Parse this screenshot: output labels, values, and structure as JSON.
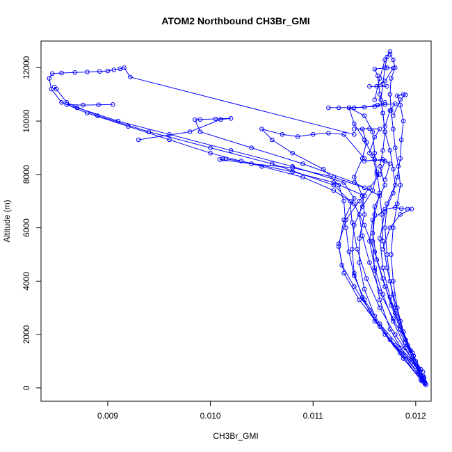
{
  "chart_data": {
    "type": "scatter",
    "title": "ATOM2 Northbound CH3Br_GMI",
    "xlabel": "CH3Br_GMI",
    "ylabel": "Altitude (m)",
    "xlim": [
      0.00835,
      0.01215
    ],
    "ylim": [
      -500,
      13000
    ],
    "xticks": [
      0.009,
      0.01,
      0.011,
      0.012
    ],
    "xtick_labels": [
      "0.009",
      "0.010",
      "0.011",
      "0.012"
    ],
    "yticks": [
      0,
      2000,
      4000,
      6000,
      8000,
      10000,
      12000
    ],
    "ytick_labels": [
      "0",
      "2000",
      "4000",
      "6000",
      "8000",
      "10000",
      "12000"
    ],
    "grid": false,
    "legend": "none",
    "color": "#0000ff",
    "marker": "open-circle",
    "line": "connected",
    "series": [
      {
        "values": [
          [
            0.01209,
            150
          ],
          [
            0.01205,
            700
          ],
          [
            0.01195,
            1400
          ],
          [
            0.01185,
            2200
          ],
          [
            0.01176,
            3100
          ],
          [
            0.01168,
            4100
          ],
          [
            0.0116,
            5100
          ],
          [
            0.0115,
            6100
          ],
          [
            0.0114,
            6900
          ],
          [
            0.0112,
            7400
          ],
          [
            0.0109,
            7900
          ],
          [
            0.0105,
            8300
          ],
          [
            0.01,
            8800
          ],
          [
            0.0096,
            9300
          ],
          [
            0.0092,
            9800
          ],
          [
            0.0088,
            10300
          ],
          [
            0.00855,
            10700
          ],
          [
            0.00845,
            11200
          ],
          [
            0.00843,
            11600
          ],
          [
            0.00846,
            11780
          ],
          [
            0.00855,
            11800
          ],
          [
            0.00868,
            11820
          ],
          [
            0.0088,
            11840
          ],
          [
            0.00892,
            11860
          ],
          [
            0.009,
            11880
          ],
          [
            0.00906,
            11920
          ],
          [
            0.00912,
            11960
          ],
          [
            0.00916,
            12000
          ],
          [
            0.00922,
            11650
          ],
          [
            0.0114,
            9500
          ]
        ]
      },
      {
        "values": [
          [
            0.01208,
            250
          ],
          [
            0.012,
            900
          ],
          [
            0.0119,
            1700
          ],
          [
            0.01178,
            2600
          ],
          [
            0.01165,
            3600
          ],
          [
            0.01155,
            4700
          ],
          [
            0.01148,
            5700
          ],
          [
            0.01145,
            6500
          ],
          [
            0.0115,
            7200
          ],
          [
            0.0112,
            7700
          ],
          [
            0.0108,
            8100
          ],
          [
            0.0103,
            8500
          ],
          [
            0.01015,
            8580
          ],
          [
            0.01012,
            8580
          ],
          [
            0.01009,
            8560
          ],
          [
            0.0104,
            8400
          ],
          [
            0.0108,
            8250
          ],
          [
            0.0112,
            7900
          ],
          [
            0.0115,
            7500
          ]
        ]
      },
      {
        "values": [
          [
            0.01207,
            350
          ],
          [
            0.01196,
            1100
          ],
          [
            0.0118,
            2000
          ],
          [
            0.01165,
            3000
          ],
          [
            0.01152,
            4100
          ],
          [
            0.01143,
            5200
          ],
          [
            0.01138,
            6200
          ],
          [
            0.01136,
            7000
          ],
          [
            0.0112,
            7600
          ],
          [
            0.0106,
            8400
          ],
          [
            0.01,
            9000
          ],
          [
            0.0094,
            9600
          ],
          [
            0.0089,
            10200
          ],
          [
            0.0086,
            10700
          ],
          [
            0.0085,
            11200
          ],
          [
            0.00848,
            11280
          ]
        ]
      },
      {
        "values": [
          [
            0.01205,
            300
          ],
          [
            0.01185,
            1300
          ],
          [
            0.01165,
            2300
          ],
          [
            0.01145,
            3300
          ],
          [
            0.0113,
            4300
          ],
          [
            0.01125,
            5300
          ],
          [
            0.0113,
            6300
          ],
          [
            0.0114,
            7100
          ],
          [
            0.0113,
            7700
          ],
          [
            0.0108,
            8300
          ],
          [
            0.0102,
            8900
          ],
          [
            0.0096,
            9500
          ],
          [
            0.0091,
            10000
          ],
          [
            0.0087,
            10500
          ],
          [
            0.0086,
            10620
          ],
          [
            0.00876,
            10600
          ],
          [
            0.00891,
            10610
          ],
          [
            0.00905,
            10620
          ]
        ]
      },
      {
        "values": [
          [
            0.01209,
            200
          ],
          [
            0.012,
            800
          ],
          [
            0.01192,
            1600
          ],
          [
            0.01185,
            2500
          ],
          [
            0.01178,
            3500
          ],
          [
            0.01172,
            4500
          ],
          [
            0.01168,
            5500
          ],
          [
            0.01167,
            6500
          ],
          [
            0.01165,
            7200
          ],
          [
            0.0114,
            7700
          ],
          [
            0.0109,
            8400
          ],
          [
            0.0104,
            9000
          ],
          [
            0.0099,
            9600
          ],
          [
            0.00985,
            10050
          ],
          [
            0.0099,
            10060
          ],
          [
            0.01005,
            10080
          ],
          [
            0.0102,
            10100
          ],
          [
            0.0101,
            10060
          ],
          [
            0.0098,
            9600
          ],
          [
            0.0093,
            9300
          ]
        ]
      },
      {
        "values": [
          [
            0.01208,
            400
          ],
          [
            0.01198,
            1200
          ],
          [
            0.01188,
            2100
          ],
          [
            0.0118,
            3000
          ],
          [
            0.01175,
            4000
          ],
          [
            0.01172,
            5000
          ],
          [
            0.0117,
            6000
          ],
          [
            0.01172,
            6900
          ],
          [
            0.0118,
            7600
          ],
          [
            0.01178,
            8200
          ],
          [
            0.01175,
            8900
          ],
          [
            0.0117,
            9600
          ],
          [
            0.01168,
            10300
          ],
          [
            0.01166,
            10800
          ],
          [
            0.01168,
            11400
          ],
          [
            0.0117,
            12000
          ],
          [
            0.01172,
            12400
          ],
          [
            0.01175,
            12600
          ],
          [
            0.0117,
            12300
          ],
          [
            0.01165,
            11600
          ],
          [
            0.0116,
            10800
          ]
        ]
      },
      {
        "values": [
          [
            0.01206,
            300
          ],
          [
            0.0119,
            1200
          ],
          [
            0.01175,
            2200
          ],
          [
            0.01165,
            3300
          ],
          [
            0.0116,
            4400
          ],
          [
            0.01158,
            5500
          ],
          [
            0.0116,
            6500
          ],
          [
            0.01165,
            7300
          ],
          [
            0.01162,
            8100
          ],
          [
            0.0116,
            8800
          ],
          [
            0.01158,
            9600
          ],
          [
            0.0115,
            10200
          ],
          [
            0.01135,
            10500
          ],
          [
            0.01125,
            10500
          ],
          [
            0.01115,
            10500
          ],
          [
            0.0114,
            10500
          ],
          [
            0.0116,
            10550
          ],
          [
            0.0117,
            10620
          ],
          [
            0.0118,
            10650
          ],
          [
            0.01175,
            10400
          ],
          [
            0.0117,
            9800
          ]
        ]
      },
      {
        "values": [
          [
            0.01207,
            450
          ],
          [
            0.01197,
            1300
          ],
          [
            0.01185,
            2300
          ],
          [
            0.01175,
            3400
          ],
          [
            0.01168,
            4500
          ],
          [
            0.01165,
            5600
          ],
          [
            0.0117,
            6600
          ],
          [
            0.01178,
            7300
          ],
          [
            0.01182,
            7900
          ],
          [
            0.01185,
            8600
          ],
          [
            0.01186,
            9300
          ],
          [
            0.01188,
            10000
          ],
          [
            0.01185,
            10600
          ],
          [
            0.01182,
            10950
          ],
          [
            0.01188,
            11000
          ],
          [
            0.0119,
            10980
          ],
          [
            0.01185,
            10800
          ],
          [
            0.01178,
            10200
          ]
        ]
      },
      {
        "values": [
          [
            0.01204,
            500
          ],
          [
            0.0119,
            1500
          ],
          [
            0.01178,
            2500
          ],
          [
            0.01168,
            3500
          ],
          [
            0.0116,
            4500
          ],
          [
            0.01155,
            5500
          ],
          [
            0.01158,
            6300
          ],
          [
            0.0117,
            6700
          ],
          [
            0.0118,
            6760
          ],
          [
            0.01186,
            6720
          ],
          [
            0.01192,
            6700
          ],
          [
            0.01196,
            6700
          ],
          [
            0.01185,
            6500
          ],
          [
            0.01175,
            6000
          ],
          [
            0.01168,
            5200
          ]
        ]
      },
      {
        "values": [
          [
            0.01209,
            180
          ],
          [
            0.01195,
            900
          ],
          [
            0.01175,
            1800
          ],
          [
            0.0116,
            2700
          ],
          [
            0.0115,
            3700
          ],
          [
            0.01145,
            4700
          ],
          [
            0.01145,
            5600
          ],
          [
            0.0115,
            6500
          ],
          [
            0.01148,
            7200
          ],
          [
            0.0114,
            7900
          ],
          [
            0.01148,
            8600
          ],
          [
            0.01152,
            9200
          ],
          [
            0.01148,
            9700
          ],
          [
            0.0114,
            9700
          ],
          [
            0.01155,
            9720
          ],
          [
            0.01165,
            9700
          ],
          [
            0.0116,
            9400
          ],
          [
            0.01155,
            8800
          ]
        ]
      },
      {
        "values": [
          [
            0.01207,
            600
          ],
          [
            0.01185,
            1500
          ],
          [
            0.01165,
            2400
          ],
          [
            0.0115,
            3300
          ],
          [
            0.0114,
            4200
          ],
          [
            0.01135,
            5100
          ],
          [
            0.01132,
            6000
          ],
          [
            0.0113,
            7000
          ],
          [
            0.01125,
            7600
          ],
          [
            0.0111,
            8200
          ],
          [
            0.0108,
            8800
          ],
          [
            0.0106,
            9300
          ],
          [
            0.0105,
            9700
          ],
          [
            0.0107,
            9500
          ],
          [
            0.01085,
            9420
          ],
          [
            0.011,
            9500
          ],
          [
            0.01115,
            9550
          ],
          [
            0.0113,
            9500
          ],
          [
            0.0115,
            8600
          ]
        ]
      },
      {
        "values": [
          [
            0.01208,
            350
          ],
          [
            0.012,
            1000
          ],
          [
            0.0119,
            1800
          ],
          [
            0.0118,
            2800
          ],
          [
            0.0117,
            3800
          ],
          [
            0.01162,
            4800
          ],
          [
            0.01158,
            5800
          ],
          [
            0.0116,
            6800
          ],
          [
            0.0117,
            7600
          ],
          [
            0.01165,
            8300
          ],
          [
            0.01168,
            8900
          ],
          [
            0.0117,
            9600
          ],
          [
            0.01168,
            10300
          ],
          [
            0.01165,
            11000
          ],
          [
            0.01163,
            11700
          ],
          [
            0.0116,
            11950
          ],
          [
            0.01172,
            12000
          ],
          [
            0.01178,
            11980
          ],
          [
            0.0117,
            11500
          ],
          [
            0.01162,
            11300
          ],
          [
            0.01155,
            11300
          ],
          [
            0.01172,
            11300
          ]
        ]
      },
      {
        "values": [
          [
            0.01206,
            250
          ],
          [
            0.01188,
            1100
          ],
          [
            0.0117,
            2000
          ],
          [
            0.01155,
            2900
          ],
          [
            0.0114,
            3800
          ],
          [
            0.01128,
            4600
          ],
          [
            0.01125,
            5400
          ],
          [
            0.01132,
            6300
          ],
          [
            0.01145,
            7000
          ],
          [
            0.01155,
            7500
          ],
          [
            0.01165,
            8000
          ],
          [
            0.0117,
            8500
          ],
          [
            0.0116,
            8550
          ],
          [
            0.0115,
            8500
          ],
          [
            0.01168,
            8560
          ],
          [
            0.01175,
            8400
          ],
          [
            0.0117,
            7800
          ]
        ]
      },
      {
        "values": [
          [
            0.0121,
            120
          ],
          [
            0.01202,
            600
          ],
          [
            0.01195,
            1300
          ],
          [
            0.01188,
            2100
          ],
          [
            0.01182,
            3000
          ],
          [
            0.01178,
            4000
          ],
          [
            0.01176,
            5000
          ],
          [
            0.01178,
            6000
          ],
          [
            0.01182,
            6900
          ],
          [
            0.01185,
            7600
          ],
          [
            0.01183,
            8300
          ],
          [
            0.0118,
            9000
          ],
          [
            0.01178,
            9700
          ],
          [
            0.01176,
            10400
          ],
          [
            0.01175,
            11000
          ],
          [
            0.01176,
            11600
          ],
          [
            0.0118,
            12000
          ],
          [
            0.01178,
            12300
          ],
          [
            0.01175,
            12500
          ]
        ]
      },
      {
        "values": [
          [
            0.01203,
            700
          ],
          [
            0.0118,
            1600
          ],
          [
            0.0116,
            2500
          ],
          [
            0.01148,
            3400
          ],
          [
            0.0114,
            4300
          ],
          [
            0.01138,
            5200
          ],
          [
            0.0114,
            6100
          ],
          [
            0.01148,
            6800
          ],
          [
            0.01158,
            7400
          ],
          [
            0.01162,
            8000
          ],
          [
            0.01158,
            8700
          ],
          [
            0.0115,
            9300
          ],
          [
            0.0114,
            9900
          ],
          [
            0.01135,
            10500
          ],
          [
            0.0115,
            10520
          ],
          [
            0.01163,
            10600
          ],
          [
            0.0117,
            10700
          ]
        ]
      }
    ]
  }
}
